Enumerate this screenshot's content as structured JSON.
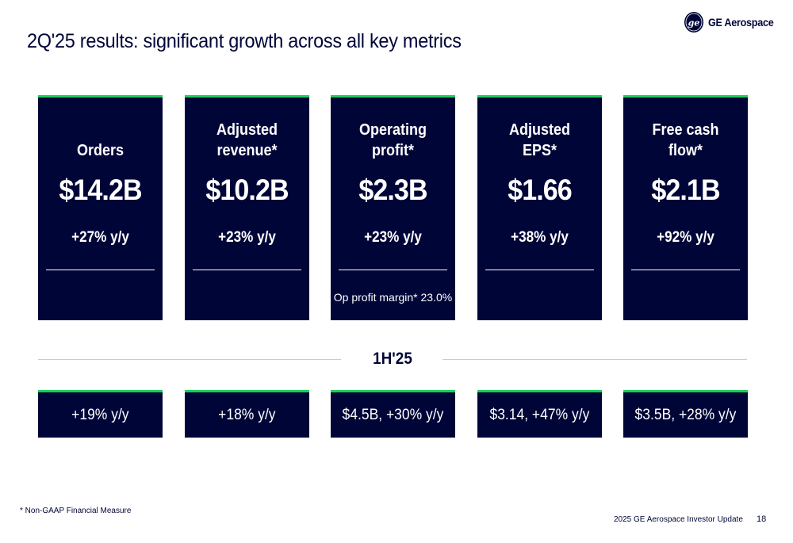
{
  "header": {
    "title": "2Q'25 results: significant growth across all key metrics",
    "logo_text": "GE Aerospace",
    "logo_icon": "ge-monogram-icon"
  },
  "colors": {
    "navy": "#000538",
    "accent_green": "#1bd05a",
    "white": "#ffffff"
  },
  "metrics": [
    {
      "label": "Orders",
      "value": "$14.2B",
      "growth": "+27% y/y",
      "note": ""
    },
    {
      "label": "Adjusted\nrevenue*",
      "value": "$10.2B",
      "growth": "+23% y/y",
      "note": ""
    },
    {
      "label": "Operating\nprofit*",
      "value": "$2.3B",
      "growth": "+23% y/y",
      "note": "Op profit margin* 23.0%"
    },
    {
      "label": "Adjusted\nEPS*",
      "value": "$1.66",
      "growth": "+38% y/y",
      "note": ""
    },
    {
      "label": "Free cash\nflow*",
      "value": "$2.1B",
      "growth": "+92% y/y",
      "note": ""
    }
  ],
  "half_year": {
    "label": "1H'25",
    "values": [
      "+19% y/y",
      "+18% y/y",
      "$4.5B, +30% y/y",
      "$3.14, +47% y/y",
      "$3.5B, +28% y/y"
    ]
  },
  "footer": {
    "footnote": "* Non-GAAP Financial Measure",
    "source": "2025 GE Aerospace Investor Update",
    "page_number": "18"
  }
}
